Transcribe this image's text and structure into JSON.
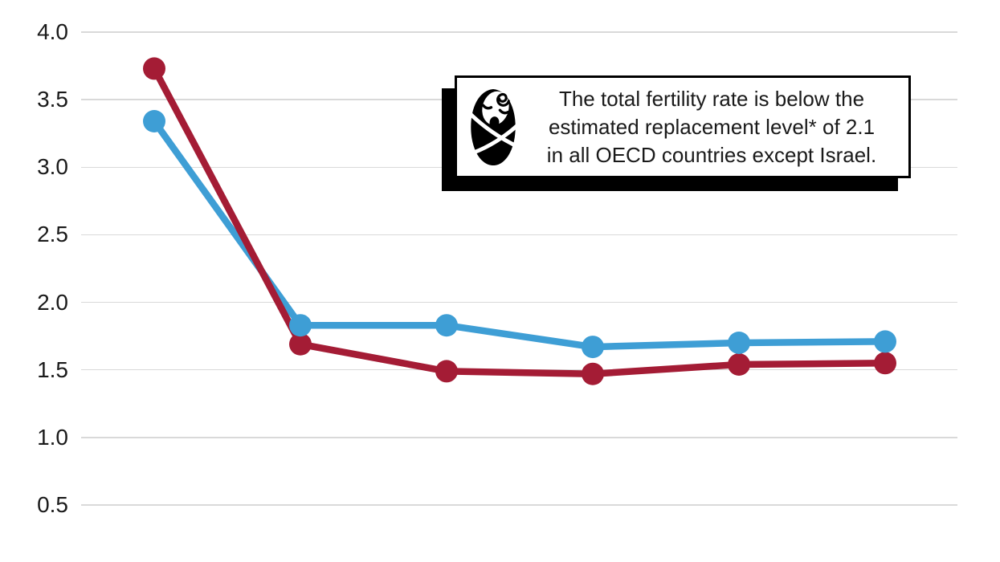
{
  "chart_data": {
    "type": "line",
    "title": "",
    "xlabel": "",
    "ylabel": "",
    "x_tick_labels_visible": false,
    "num_points": 6,
    "ylim": [
      0.5,
      4.0
    ],
    "yticks": [
      "4.0",
      "3.5",
      "3.0",
      "2.5",
      "2.0",
      "1.5",
      "1.0",
      "0.5"
    ],
    "grid": true,
    "series": [
      {
        "name": "red-series",
        "color": "#A41C35",
        "marker": "circle",
        "values": [
          3.73,
          1.69,
          1.49,
          1.47,
          1.54,
          1.55
        ]
      },
      {
        "name": "blue-series",
        "color": "#3E9ED5",
        "marker": "circle",
        "values": [
          3.34,
          1.83,
          1.83,
          1.67,
          1.7,
          1.71
        ]
      }
    ]
  },
  "annotation": {
    "icon": "swaddled-baby-icon",
    "lines": [
      "The total fertility rate is below the",
      "estimated replacement level* of 2.1",
      "in all OECD countries except Israel."
    ]
  },
  "colors": {
    "background": "#FFFFFF",
    "gridline": "#D9D9D9",
    "axis_text": "#1A1A1A",
    "annotation_border": "#000000",
    "annotation_shadow": "#000000",
    "annotation_text": "#1A1A1A"
  }
}
